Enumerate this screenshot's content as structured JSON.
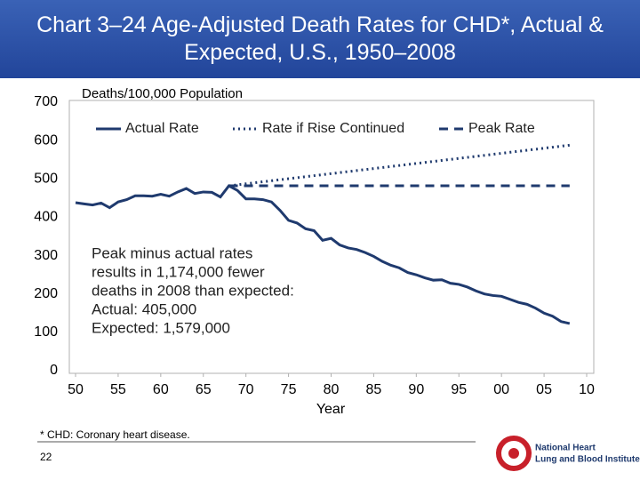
{
  "chart_data": {
    "type": "line",
    "title": "Chart 3–24 Age-Adjusted Death Rates for CHD*, Actual & Expected, U.S., 1950–2008",
    "y_label": "Deaths/100,000 Population",
    "x_label": "Year",
    "xlim": [
      1950,
      2010
    ],
    "xticks": [
      {
        "value": 1950,
        "label": "50"
      },
      {
        "value": 1955,
        "label": "55"
      },
      {
        "value": 1960,
        "label": "60"
      },
      {
        "value": 1965,
        "label": "65"
      },
      {
        "value": 1970,
        "label": "70"
      },
      {
        "value": 1975,
        "label": "75"
      },
      {
        "value": 1980,
        "label": "80"
      },
      {
        "value": 1985,
        "label": "85"
      },
      {
        "value": 1990,
        "label": "90"
      },
      {
        "value": 1995,
        "label": "95"
      },
      {
        "value": 2000,
        "label": "00"
      },
      {
        "value": 2005,
        "label": "05"
      },
      {
        "value": 2010,
        "label": "10"
      }
    ],
    "ylim": [
      0,
      700
    ],
    "yticks": [
      0,
      100,
      200,
      300,
      400,
      500,
      600,
      700
    ],
    "grid": false,
    "legend": "top",
    "series": [
      {
        "name": "Actual Rate",
        "color": "#1f3a6e",
        "dash": "solid",
        "x": [
          1950,
          1951,
          1952,
          1953,
          1954,
          1955,
          1956,
          1957,
          1958,
          1959,
          1960,
          1961,
          1962,
          1963,
          1964,
          1965,
          1966,
          1967,
          1968,
          1969,
          1970,
          1971,
          1972,
          1973,
          1974,
          1975,
          1976,
          1977,
          1978,
          1979,
          1980,
          1981,
          1982,
          1983,
          1984,
          1985,
          1986,
          1987,
          1988,
          1989,
          1990,
          1991,
          1992,
          1993,
          1994,
          1995,
          1996,
          1997,
          1998,
          1999,
          2000,
          2001,
          2002,
          2003,
          2004,
          2005,
          2006,
          2007,
          2008
        ],
        "values": [
          438,
          435,
          432,
          437,
          425,
          440,
          446,
          456,
          456,
          455,
          460,
          455,
          466,
          475,
          462,
          466,
          465,
          453,
          482,
          470,
          448,
          448,
          446,
          440,
          418,
          392,
          385,
          370,
          365,
          340,
          345,
          328,
          320,
          316,
          308,
          298,
          285,
          275,
          268,
          256,
          250,
          242,
          236,
          237,
          228,
          225,
          218,
          208,
          200,
          196,
          194,
          186,
          178,
          173,
          163,
          150,
          142,
          128,
          123
        ]
      },
      {
        "name": "Rate if Rise Continued",
        "color": "#1f3a6e",
        "dash": "dotted",
        "x": [
          1968,
          2008
        ],
        "values": [
          482,
          588
        ]
      },
      {
        "name": "Peak Rate",
        "color": "#1f3a6e",
        "dash": "dashed",
        "x": [
          1968,
          2008
        ],
        "values": [
          482,
          482
        ]
      }
    ],
    "annotation": [
      "Peak minus actual rates",
      "results in 1,174,000 fewer",
      "deaths in 2008 than expected:",
      "Actual: 405,000",
      "Expected: 1,579,000"
    ]
  },
  "footer": {
    "footnote": "* CHD: Coronary heart disease.",
    "page_number": "22"
  },
  "logo": {
    "lines": [
      "National Heart",
      "Lung and Blood Institute"
    ]
  }
}
